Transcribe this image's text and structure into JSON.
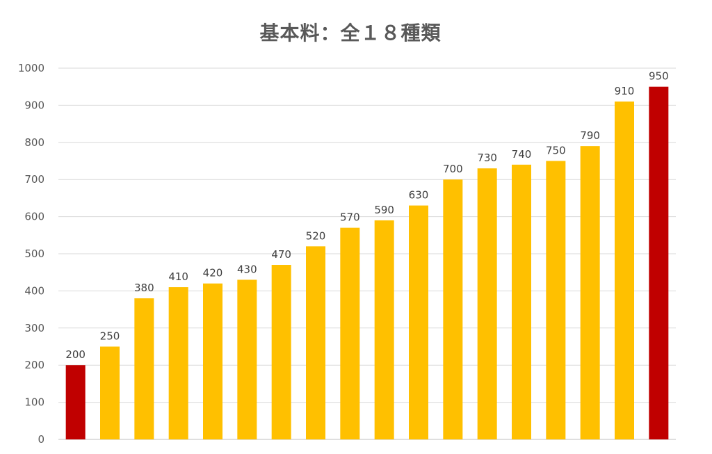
{
  "chart_data": {
    "type": "bar",
    "title": "基本料：全１８種類",
    "xlabel": "",
    "ylabel": "",
    "ylim": [
      0,
      1000
    ],
    "yticks": [
      0,
      100,
      200,
      300,
      400,
      500,
      600,
      700,
      800,
      900,
      1000
    ],
    "grid": true,
    "legend": "none",
    "categories": [
      "",
      "",
      "",
      "",
      "",
      "",
      "",
      "",
      "",
      "",
      "",
      "",
      "",
      "",
      "",
      "",
      "",
      ""
    ],
    "values": [
      200,
      250,
      380,
      410,
      420,
      430,
      470,
      520,
      570,
      590,
      630,
      700,
      730,
      740,
      750,
      790,
      910,
      950
    ],
    "data_labels": [
      "200",
      "250",
      "380",
      "410",
      "420",
      "430",
      "470",
      "520",
      "570",
      "590",
      "630",
      "700",
      "730",
      "740",
      "750",
      "790",
      "910",
      "950"
    ],
    "bar_colors": [
      "#c00000",
      "#ffc000",
      "#ffc000",
      "#ffc000",
      "#ffc000",
      "#ffc000",
      "#ffc000",
      "#ffc000",
      "#ffc000",
      "#ffc000",
      "#ffc000",
      "#ffc000",
      "#ffc000",
      "#ffc000",
      "#ffc000",
      "#ffc000",
      "#ffc000",
      "#c00000"
    ],
    "colors": {
      "highlight": "#c00000",
      "bar": "#ffc000",
      "grid": "#d9d9d9",
      "text": "#595959"
    }
  }
}
